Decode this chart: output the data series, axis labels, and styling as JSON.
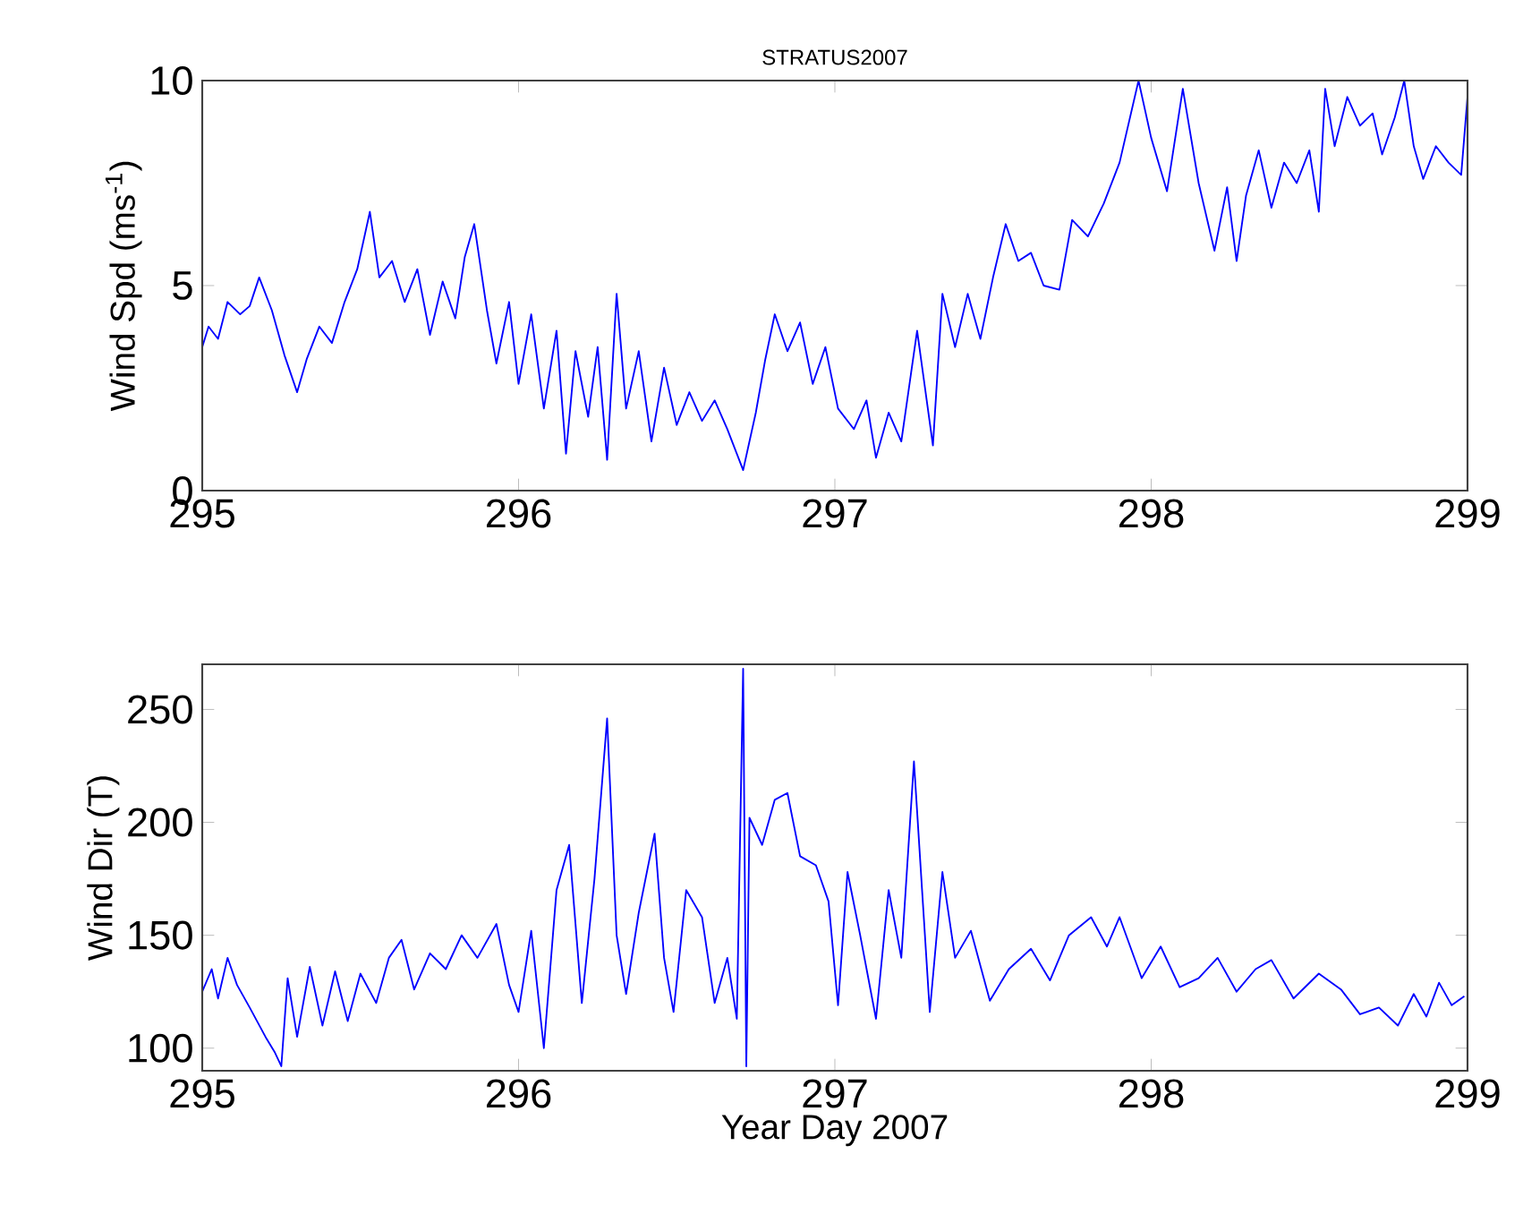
{
  "chart_data": [
    {
      "type": "line",
      "title": "STRATUS2007",
      "ylabel": "Wind Spd (ms$^{-1}$)",
      "xlim": [
        295,
        299
      ],
      "ylim": [
        0,
        10
      ],
      "xticks": [
        295,
        296,
        297,
        298,
        299
      ],
      "yticks": [
        0,
        5,
        10
      ],
      "x": [
        295.0,
        295.02,
        295.05,
        295.08,
        295.12,
        295.15,
        295.18,
        295.22,
        295.26,
        295.3,
        295.33,
        295.37,
        295.41,
        295.45,
        295.49,
        295.53,
        295.56,
        295.6,
        295.64,
        295.68,
        295.72,
        295.76,
        295.8,
        295.83,
        295.86,
        295.9,
        295.93,
        295.97,
        296.0,
        296.04,
        296.08,
        296.12,
        296.15,
        296.18,
        296.22,
        296.25,
        296.28,
        296.31,
        296.34,
        296.38,
        296.42,
        296.46,
        296.5,
        296.54,
        296.58,
        296.62,
        296.66,
        296.71,
        296.75,
        296.78,
        296.81,
        296.85,
        296.89,
        296.93,
        296.97,
        297.01,
        297.06,
        297.1,
        297.13,
        297.17,
        297.21,
        297.26,
        297.31,
        297.34,
        297.38,
        297.42,
        297.46,
        297.5,
        297.54,
        297.58,
        297.62,
        297.66,
        297.71,
        297.75,
        297.8,
        297.85,
        297.9,
        297.96,
        298.0,
        298.05,
        298.1,
        298.15,
        298.2,
        298.24,
        298.27,
        298.3,
        298.34,
        298.38,
        298.42,
        298.46,
        298.5,
        298.53,
        298.55,
        298.58,
        298.62,
        298.66,
        298.7,
        298.73,
        298.77,
        298.8,
        298.83,
        298.86,
        298.9,
        298.94,
        298.98,
        299.0
      ],
      "series": [
        {
          "color": "#0000ff",
          "values": [
            3.5,
            4.0,
            3.7,
            4.6,
            4.3,
            4.5,
            5.2,
            4.4,
            3.3,
            2.4,
            3.2,
            4.0,
            3.6,
            4.6,
            5.4,
            6.8,
            5.2,
            5.6,
            4.6,
            5.4,
            3.8,
            5.1,
            4.2,
            5.7,
            6.5,
            4.4,
            3.1,
            4.6,
            2.6,
            4.3,
            2.0,
            3.9,
            0.9,
            3.4,
            1.8,
            3.5,
            0.75,
            4.8,
            2.0,
            3.4,
            1.2,
            3.0,
            1.6,
            2.4,
            1.7,
            2.2,
            1.5,
            0.5,
            1.9,
            3.2,
            4.3,
            3.4,
            4.1,
            2.6,
            3.5,
            2.0,
            1.5,
            2.2,
            0.8,
            1.9,
            1.2,
            3.9,
            1.1,
            4.8,
            3.5,
            4.8,
            3.7,
            5.2,
            6.5,
            5.6,
            5.8,
            5.0,
            4.9,
            6.6,
            6.2,
            7.0,
            8.0,
            10.0,
            8.6,
            7.3,
            9.8,
            7.5,
            5.85,
            7.4,
            5.6,
            7.2,
            8.3,
            6.9,
            8.0,
            7.5,
            8.3,
            6.8,
            9.8,
            8.4,
            9.6,
            8.9,
            9.2,
            8.2,
            9.1,
            10.0,
            8.4,
            7.6,
            8.4,
            8.0,
            7.7,
            9.6
          ]
        }
      ]
    },
    {
      "type": "line",
      "xlabel": "Year Day 2007",
      "ylabel": "Wind Dir (T)",
      "xlim": [
        295,
        299
      ],
      "ylim": [
        90,
        270
      ],
      "xticks": [
        295,
        296,
        297,
        298,
        299
      ],
      "yticks": [
        100,
        150,
        200,
        250
      ],
      "x": [
        295.0,
        295.03,
        295.05,
        295.08,
        295.11,
        295.15,
        295.2,
        295.23,
        295.25,
        295.27,
        295.3,
        295.34,
        295.38,
        295.42,
        295.46,
        295.5,
        295.55,
        295.59,
        295.63,
        295.67,
        295.72,
        295.77,
        295.82,
        295.87,
        295.93,
        295.97,
        296.0,
        296.04,
        296.08,
        296.12,
        296.16,
        296.2,
        296.24,
        296.28,
        296.31,
        296.34,
        296.38,
        296.43,
        296.46,
        296.49,
        296.53,
        296.58,
        296.62,
        296.66,
        296.69,
        296.71,
        296.72,
        296.73,
        296.77,
        296.81,
        296.85,
        296.89,
        296.94,
        296.98,
        297.01,
        297.04,
        297.08,
        297.13,
        297.17,
        297.21,
        297.25,
        297.3,
        297.34,
        297.38,
        297.43,
        297.49,
        297.55,
        297.62,
        297.68,
        297.74,
        297.81,
        297.86,
        297.9,
        297.97,
        298.03,
        298.09,
        298.15,
        298.21,
        298.27,
        298.33,
        298.38,
        298.45,
        298.53,
        298.6,
        298.66,
        298.72,
        298.78,
        298.83,
        298.87,
        298.91,
        298.95,
        298.99
      ],
      "series": [
        {
          "color": "#0000ff",
          "values": [
            125,
            135,
            122,
            140,
            128,
            118,
            105,
            98,
            92,
            131,
            105,
            136,
            110,
            134,
            112,
            133,
            120,
            140,
            148,
            126,
            142,
            135,
            150,
            140,
            155,
            128,
            116,
            152,
            100,
            170,
            190,
            120,
            175,
            246,
            150,
            124,
            160,
            195,
            140,
            116,
            170,
            158,
            120,
            140,
            113,
            268,
            92,
            202,
            190,
            210,
            213,
            185,
            181,
            165,
            119,
            178,
            150,
            113,
            170,
            140,
            227,
            116,
            178,
            140,
            152,
            121,
            135,
            144,
            130,
            150,
            158,
            145,
            158,
            131,
            145,
            127,
            131,
            140,
            125,
            135,
            139,
            122,
            133,
            126,
            115,
            118,
            110,
            124,
            114,
            129,
            119,
            123
          ]
        }
      ]
    }
  ]
}
